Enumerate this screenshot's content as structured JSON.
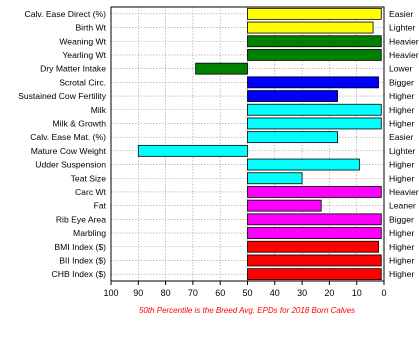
{
  "chart_data": {
    "type": "bar",
    "orientation": "horizontal",
    "categories": [
      "Calv. Ease Direct (%)",
      "Birth Wt",
      "Weaning Wt",
      "Yearling Wt",
      "Dry Matter Intake",
      "Scrotal Circ.",
      "Sustained Cow Fertility",
      "Milk",
      "Milk & Growth",
      "Calv. Ease Mat. (%)",
      "Mature Cow Weight",
      "Udder Suspension",
      "Teat Size",
      "Carc Wt",
      "Fat",
      "Rib Eye Area",
      "Marbling",
      "BMI Index ($)",
      "BII Index ($)",
      "CHB Index ($)"
    ],
    "descriptors": [
      "Easier",
      "Lighter",
      "Heavier",
      "Heavier",
      "Lower",
      "Bigger",
      "Higher",
      "Higher",
      "Higher",
      "Easier",
      "Lighter",
      "Higher",
      "Higher",
      "Heavier",
      "Leaner",
      "Bigger",
      "Higher",
      "Higher",
      "Higher",
      "Higher"
    ],
    "values": [
      1,
      4,
      1,
      1,
      69,
      2,
      17,
      1,
      1,
      17,
      90,
      9,
      30,
      1,
      23,
      1,
      1,
      2,
      1,
      1
    ],
    "colors": [
      "#ffff00",
      "#ffff00",
      "#008000",
      "#008000",
      "#008000",
      "#0000ff",
      "#0000ff",
      "#00ffff",
      "#00ffff",
      "#00ffff",
      "#00ffff",
      "#00ffff",
      "#00ffff",
      "#ff00ff",
      "#ff00ff",
      "#ff00ff",
      "#ff00ff",
      "#ff0000",
      "#ff0000",
      "#ff0000"
    ],
    "baseline": 50,
    "xlim": [
      100,
      0
    ],
    "xticks": [
      100,
      90,
      80,
      70,
      60,
      50,
      40,
      30,
      20,
      10,
      0
    ],
    "grid": true,
    "footnote": "50th Percentile is the Breed Avg. EPDs for 2018 Born Calves"
  }
}
